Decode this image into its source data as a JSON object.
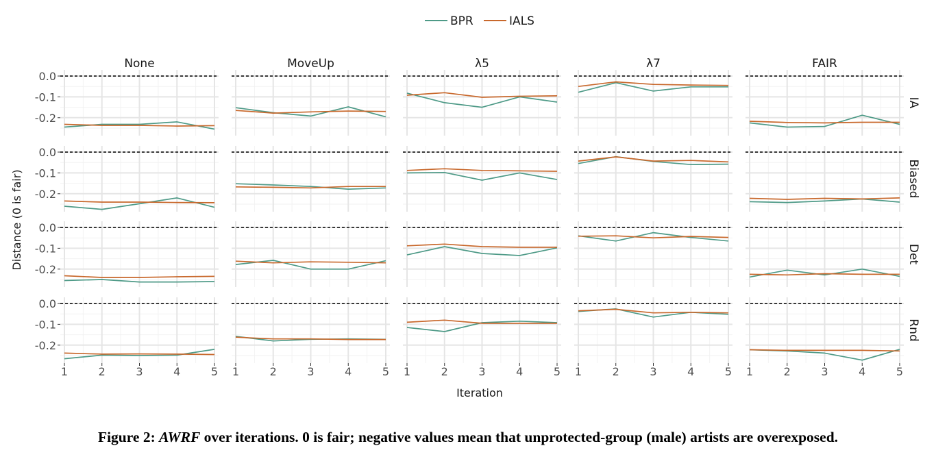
{
  "caption": {
    "label": "Figure 2:",
    "metric": "AWRF",
    "text": " over iterations. 0 is fair; negative values mean that unprotected-group (male) artists are overexposed."
  },
  "colors": {
    "BPR": "#4e9a87",
    "IALS": "#c8682c",
    "reference": "#000000",
    "grid": "#e5e5e5"
  },
  "chart_data": {
    "type": "line",
    "facet_type": "grid",
    "xlabel": "Iteration",
    "ylabel": "Distance (0 is fair)",
    "x": [
      1,
      2,
      3,
      4,
      5
    ],
    "xlim": [
      1,
      5
    ],
    "ylim": [
      -0.25,
      0.0
    ],
    "yticks": [
      0.0,
      -0.1,
      -0.2
    ],
    "ytick_labels": [
      "0.0",
      "-0.1",
      "-0.2"
    ],
    "reference_line": 0.0,
    "legend": {
      "position": "top",
      "entries": [
        "BPR",
        "IALS"
      ]
    },
    "column_facets": [
      "None",
      "MoveUp",
      "λ5",
      "λ7",
      "FAIR"
    ],
    "row_facets": [
      "IA",
      "Biased",
      "Det",
      "Rnd"
    ],
    "panels": [
      {
        "row": "IA",
        "col": "None",
        "series": [
          {
            "name": "BPR",
            "values": [
              -0.245,
              -0.232,
              -0.232,
              -0.22,
              -0.255
            ]
          },
          {
            "name": "IALS",
            "values": [
              -0.232,
              -0.237,
              -0.237,
              -0.24,
              -0.238
            ]
          }
        ]
      },
      {
        "row": "IA",
        "col": "MoveUp",
        "series": [
          {
            "name": "BPR",
            "values": [
              -0.152,
              -0.176,
              -0.192,
              -0.148,
              -0.196
            ]
          },
          {
            "name": "IALS",
            "values": [
              -0.165,
              -0.178,
              -0.172,
              -0.168,
              -0.17
            ]
          }
        ]
      },
      {
        "row": "IA",
        "col": "λ5",
        "series": [
          {
            "name": "BPR",
            "values": [
              -0.082,
              -0.128,
              -0.15,
              -0.1,
              -0.125
            ]
          },
          {
            "name": "IALS",
            "values": [
              -0.092,
              -0.08,
              -0.102,
              -0.097,
              -0.095
            ]
          }
        ]
      },
      {
        "row": "IA",
        "col": "λ7",
        "series": [
          {
            "name": "BPR",
            "values": [
              -0.078,
              -0.032,
              -0.072,
              -0.052,
              -0.052
            ]
          },
          {
            "name": "IALS",
            "values": [
              -0.05,
              -0.028,
              -0.04,
              -0.043,
              -0.045
            ]
          }
        ]
      },
      {
        "row": "IA",
        "col": "FAIR",
        "series": [
          {
            "name": "BPR",
            "values": [
              -0.225,
              -0.245,
              -0.242,
              -0.188,
              -0.232
            ]
          },
          {
            "name": "IALS",
            "values": [
              -0.217,
              -0.223,
              -0.225,
              -0.222,
              -0.222
            ]
          }
        ]
      },
      {
        "row": "Biased",
        "col": "None",
        "series": [
          {
            "name": "BPR",
            "values": [
              -0.26,
              -0.275,
              -0.248,
              -0.22,
              -0.265
            ]
          },
          {
            "name": "IALS",
            "values": [
              -0.235,
              -0.24,
              -0.24,
              -0.242,
              -0.243
            ]
          }
        ]
      },
      {
        "row": "Biased",
        "col": "MoveUp",
        "series": [
          {
            "name": "BPR",
            "values": [
              -0.152,
              -0.158,
              -0.165,
              -0.178,
              -0.172
            ]
          },
          {
            "name": "IALS",
            "values": [
              -0.167,
              -0.169,
              -0.172,
              -0.165,
              -0.165
            ]
          }
        ]
      },
      {
        "row": "Biased",
        "col": "λ5",
        "series": [
          {
            "name": "BPR",
            "values": [
              -0.1,
              -0.098,
              -0.135,
              -0.1,
              -0.132
            ]
          },
          {
            "name": "IALS",
            "values": [
              -0.088,
              -0.08,
              -0.088,
              -0.09,
              -0.092
            ]
          }
        ]
      },
      {
        "row": "Biased",
        "col": "λ7",
        "series": [
          {
            "name": "BPR",
            "values": [
              -0.055,
              -0.022,
              -0.045,
              -0.06,
              -0.058
            ]
          },
          {
            "name": "IALS",
            "values": [
              -0.043,
              -0.023,
              -0.043,
              -0.04,
              -0.047
            ]
          }
        ]
      },
      {
        "row": "Biased",
        "col": "FAIR",
        "series": [
          {
            "name": "BPR",
            "values": [
              -0.238,
              -0.242,
              -0.235,
              -0.225,
              -0.24
            ]
          },
          {
            "name": "IALS",
            "values": [
              -0.222,
              -0.227,
              -0.222,
              -0.225,
              -0.22
            ]
          }
        ]
      },
      {
        "row": "Det",
        "col": "None",
        "series": [
          {
            "name": "BPR",
            "values": [
              -0.255,
              -0.25,
              -0.262,
              -0.262,
              -0.26
            ]
          },
          {
            "name": "IALS",
            "values": [
              -0.232,
              -0.24,
              -0.24,
              -0.237,
              -0.235
            ]
          }
        ]
      },
      {
        "row": "Det",
        "col": "MoveUp",
        "series": [
          {
            "name": "BPR",
            "values": [
              -0.178,
              -0.158,
              -0.2,
              -0.2,
              -0.16
            ]
          },
          {
            "name": "IALS",
            "values": [
              -0.162,
              -0.17,
              -0.165,
              -0.167,
              -0.17
            ]
          }
        ]
      },
      {
        "row": "Det",
        "col": "λ5",
        "series": [
          {
            "name": "BPR",
            "values": [
              -0.132,
              -0.092,
              -0.125,
              -0.135,
              -0.098
            ]
          },
          {
            "name": "IALS",
            "values": [
              -0.088,
              -0.08,
              -0.092,
              -0.095,
              -0.095
            ]
          }
        ]
      },
      {
        "row": "Det",
        "col": "λ7",
        "series": [
          {
            "name": "BPR",
            "values": [
              -0.04,
              -0.065,
              -0.025,
              -0.048,
              -0.065
            ]
          },
          {
            "name": "IALS",
            "values": [
              -0.042,
              -0.04,
              -0.05,
              -0.043,
              -0.048
            ]
          }
        ]
      },
      {
        "row": "Det",
        "col": "FAIR",
        "series": [
          {
            "name": "BPR",
            "values": [
              -0.238,
              -0.205,
              -0.228,
              -0.2,
              -0.235
            ]
          },
          {
            "name": "IALS",
            "values": [
              -0.225,
              -0.228,
              -0.222,
              -0.225,
              -0.225
            ]
          }
        ]
      },
      {
        "row": "Rnd",
        "col": "None",
        "series": [
          {
            "name": "BPR",
            "values": [
              -0.265,
              -0.248,
              -0.25,
              -0.248,
              -0.22
            ]
          },
          {
            "name": "IALS",
            "values": [
              -0.238,
              -0.243,
              -0.242,
              -0.243,
              -0.245
            ]
          }
        ]
      },
      {
        "row": "Rnd",
        "col": "MoveUp",
        "series": [
          {
            "name": "BPR",
            "values": [
              -0.158,
              -0.18,
              -0.172,
              -0.17,
              -0.172
            ]
          },
          {
            "name": "IALS",
            "values": [
              -0.162,
              -0.17,
              -0.17,
              -0.173,
              -0.173
            ]
          }
        ]
      },
      {
        "row": "Rnd",
        "col": "λ5",
        "series": [
          {
            "name": "BPR",
            "values": [
              -0.115,
              -0.135,
              -0.092,
              -0.085,
              -0.092
            ]
          },
          {
            "name": "IALS",
            "values": [
              -0.09,
              -0.08,
              -0.095,
              -0.095,
              -0.095
            ]
          }
        ]
      },
      {
        "row": "Rnd",
        "col": "λ7",
        "series": [
          {
            "name": "BPR",
            "values": [
              -0.038,
              -0.026,
              -0.065,
              -0.042,
              -0.052
            ]
          },
          {
            "name": "IALS",
            "values": [
              -0.035,
              -0.028,
              -0.045,
              -0.042,
              -0.045
            ]
          }
        ]
      },
      {
        "row": "Rnd",
        "col": "FAIR",
        "series": [
          {
            "name": "BPR",
            "values": [
              -0.222,
              -0.228,
              -0.238,
              -0.272,
              -0.22
            ]
          },
          {
            "name": "IALS",
            "values": [
              -0.222,
              -0.225,
              -0.225,
              -0.225,
              -0.228
            ]
          }
        ]
      }
    ]
  }
}
